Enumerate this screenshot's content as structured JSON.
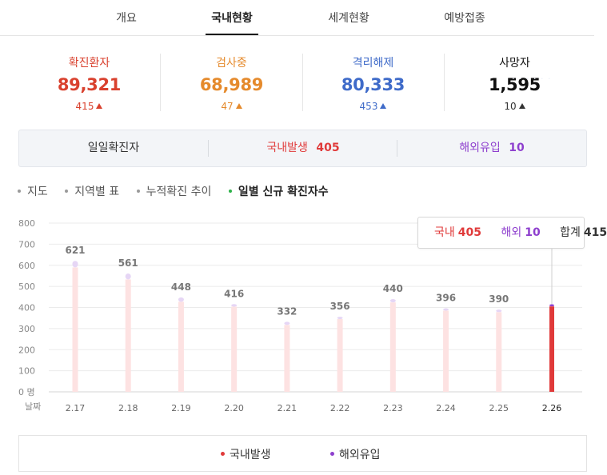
{
  "tabs": [
    {
      "label": "개요",
      "active": false
    },
    {
      "label": "국내현황",
      "active": true
    },
    {
      "label": "세계현황",
      "active": false
    },
    {
      "label": "예방접종",
      "active": false
    }
  ],
  "stats": [
    {
      "label": "확진환자",
      "value": "89,321",
      "delta": "415",
      "color": "#d9412e"
    },
    {
      "label": "검사중",
      "value": "68,989",
      "delta": "47",
      "color": "#e58a2c"
    },
    {
      "label": "격리해제",
      "value": "80,333",
      "delta": "453",
      "color": "#3f6bc9"
    },
    {
      "label": "사망자",
      "value": "1,595",
      "delta": "10",
      "color": "#111111"
    }
  ],
  "daily": {
    "title": "일일확진자",
    "domestic_label": "국내발생",
    "domestic_value": "405",
    "overseas_label": "해외유입",
    "overseas_value": "10"
  },
  "subnav": [
    {
      "label": "지도",
      "active": false
    },
    {
      "label": "지역별 표",
      "active": false
    },
    {
      "label": "누적확진 추이",
      "active": false
    },
    {
      "label": "일별 신규 확진자수",
      "active": true
    }
  ],
  "tooltip": {
    "domestic_label": "국내",
    "domestic_value": "405",
    "overseas_label": "해외",
    "overseas_value": "10",
    "total_label": "합계",
    "total_value": "415"
  },
  "legend": {
    "domestic": "국내발생",
    "overseas": "해외유입"
  },
  "colors": {
    "domestic": "#e03a3a",
    "overseas": "#8e3fce",
    "bar_faded": "#fde2e2",
    "overseas_faded": "#e6d6f5",
    "grid": "#ebebeb"
  },
  "chart_data": {
    "type": "bar",
    "stacked": true,
    "categories": [
      "2.17",
      "2.18",
      "2.19",
      "2.20",
      "2.21",
      "2.22",
      "2.23",
      "2.24",
      "2.25",
      "2.26"
    ],
    "series": [
      {
        "name": "국내발생",
        "values": [
          590,
          533,
          427,
          404,
          317,
          345,
          424,
          385,
          378,
          405
        ]
      },
      {
        "name": "해외유입",
        "values": [
          31,
          28,
          21,
          12,
          15,
          11,
          16,
          11,
          12,
          10
        ]
      }
    ],
    "totals": [
      "621",
      "561",
      "448",
      "416",
      "332",
      "356",
      "440",
      "396",
      "390",
      ""
    ],
    "highlight_index": 9,
    "y_ticks": [
      "0 명",
      "100",
      "200",
      "300",
      "400",
      "500",
      "600",
      "700",
      "800"
    ],
    "x_unit_label": "날짜",
    "ylim": [
      0,
      800
    ],
    "grid": true
  }
}
